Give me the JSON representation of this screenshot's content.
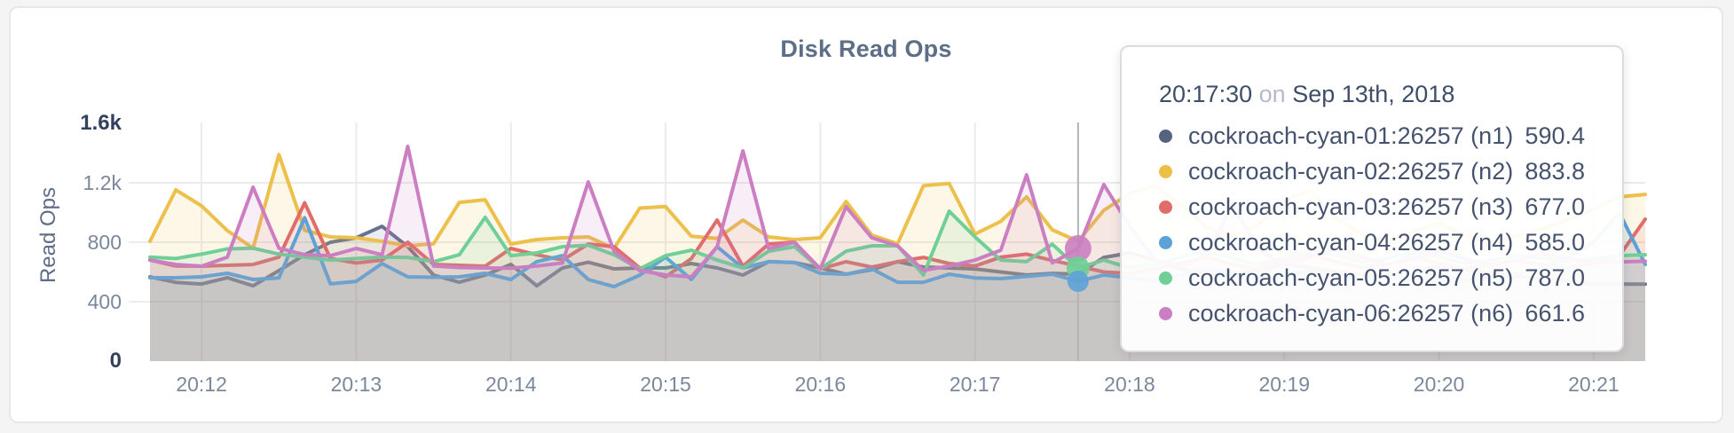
{
  "panel": {
    "title": "Disk Read Ops",
    "background": "#f4f4f4",
    "card_background": "#ffffff",
    "card_border": "#e7e7e7"
  },
  "chart_data": {
    "type": "area",
    "title": "Disk Read Ops",
    "ylabel": "Read Ops",
    "xlabel": "",
    "ylim": [
      0,
      1600
    ],
    "grid": true,
    "legend_position": "tooltip",
    "x_start_time": "20:11:40",
    "x_end_time": "20:21:20",
    "point_interval_seconds": 10,
    "first_tick_offset_seconds": 20,
    "tick_interval_seconds": 60,
    "x_ticks": [
      "20:12",
      "20:13",
      "20:14",
      "20:15",
      "20:16",
      "20:17",
      "20:18",
      "20:19",
      "20:20",
      "20:21"
    ],
    "y_ticks": [
      {
        "label": "0",
        "value": 0,
        "emphasis": true,
        "gridline": false
      },
      {
        "label": "400",
        "value": 400,
        "emphasis": false,
        "gridline": true
      },
      {
        "label": "800",
        "value": 800,
        "emphasis": false,
        "gridline": true
      },
      {
        "label": "1.2k",
        "value": 1200,
        "emphasis": false,
        "gridline": true
      },
      {
        "label": "1.6k",
        "value": 1600,
        "emphasis": true,
        "gridline": false
      }
    ],
    "series": [
      {
        "name": "cockroach-cyan-01:26257 (n1)",
        "color": "#66738f",
        "values": [
          567,
          530,
          519,
          561,
          507,
          609,
          716,
          800,
          830,
          907,
          770,
          579,
          531,
          579,
          651,
          507,
          627,
          665,
          621,
          627,
          627,
          657,
          627,
          579,
          669,
          663,
          627,
          585,
          615,
          669,
          633,
          627,
          620,
          600,
          580,
          590.4,
          585,
          698,
          728,
          680,
          620,
          590,
          570,
          610,
          650,
          630,
          600,
          580,
          560,
          600,
          640,
          620,
          590,
          570,
          555,
          540,
          520,
          519,
          518
        ]
      },
      {
        "name": "cockroach-cyan-02:26257 (n2)",
        "color": "#edbf4b",
        "values": [
          806,
          1152,
          1045,
          878,
          760,
          1390,
          880,
          836,
          830,
          806,
          776,
          790,
          1068,
          1086,
          788,
          818,
          830,
          836,
          758,
          1030,
          1040,
          840,
          825,
          949,
          836,
          818,
          830,
          1074,
          848,
          790,
          1180,
          1195,
          855,
          940,
          1105,
          883.8,
          806,
          1015,
          1128,
          1180,
          1050,
          900,
          840,
          920,
          1080,
          1150,
          960,
          850,
          810,
          870,
          930,
          850,
          800,
          840,
          890,
          950,
          1020,
          1105,
          1122
        ]
      },
      {
        "name": "cockroach-cyan-03:26257 (n3)",
        "color": "#e06d6a",
        "values": [
          680,
          640,
          639,
          645,
          650,
          700,
          1065,
          690,
          660,
          680,
          800,
          651,
          645,
          639,
          758,
          716,
          680,
          788,
          770,
          627,
          567,
          690,
          949,
          639,
          788,
          800,
          621,
          669,
          633,
          669,
          698,
          657,
          640,
          700,
          720,
          677,
          640,
          600,
          590,
          620,
          660,
          700,
          650,
          620,
          680,
          720,
          670,
          630,
          650,
          700,
          660,
          620,
          640,
          680,
          650,
          630,
          660,
          710,
          955
        ]
      },
      {
        "name": "cockroach-cyan-04:26257 (n4)",
        "color": "#5da2d7",
        "values": [
          561,
          561,
          567,
          591,
          549,
          560,
          965,
          520,
          537,
          657,
          567,
          564,
          567,
          591,
          549,
          669,
          710,
          549,
          501,
          579,
          700,
          549,
          770,
          627,
          669,
          663,
          591,
          585,
          621,
          531,
          531,
          585,
          560,
          555,
          570,
          585,
          537,
          580,
          560,
          540,
          580,
          620,
          590,
          550,
          570,
          610,
          580,
          550,
          570,
          600,
          570,
          540,
          560,
          590,
          620,
          700,
          800,
          997,
          651
        ]
      },
      {
        "name": "cockroach-cyan-05:26257 (n5)",
        "color": "#6fcf97",
        "values": [
          700,
          690,
          720,
          755,
          760,
          720,
          700,
          680,
          690,
          700,
          698,
          669,
          716,
          967,
          710,
          728,
          770,
          780,
          716,
          621,
          710,
          746,
          680,
          627,
          740,
          770,
          621,
          740,
          776,
          776,
          580,
          1009,
          836,
          680,
          669,
          787,
          627,
          680,
          627,
          650,
          700,
          740,
          690,
          650,
          700,
          750,
          710,
          670,
          690,
          730,
          700,
          660,
          680,
          710,
          690,
          670,
          690,
          710,
          716
        ]
      },
      {
        "name": "cockroach-cyan-06:26257 (n6)",
        "color": "#cb7ec1",
        "values": [
          680,
          650,
          639,
          700,
          1170,
          760,
          716,
          710,
          758,
          716,
          1445,
          640,
          630,
          627,
          625,
          640,
          660,
          1206,
          740,
          609,
          580,
          567,
          770,
          1415,
          758,
          800,
          621,
          1039,
          830,
          776,
          610,
          640,
          680,
          746,
          1253,
          661.6,
          758,
          1188,
          907,
          680,
          640,
          720,
          1050,
          750,
          650,
          700,
          760,
          700,
          650,
          690,
          740,
          690,
          650,
          680,
          720,
          690,
          660,
          668,
          672
        ]
      }
    ],
    "style": {
      "line_width": 4,
      "fill_opacity": 0.13,
      "grid_color": "#ebebeb"
    }
  },
  "hover": {
    "point_index": 36,
    "guideline_color": "#b3b3b3",
    "dots": [
      {
        "series": "cockroach-cyan-06:26257 (n6)",
        "color": "#cb7ec1",
        "value": 758,
        "radius": 15
      },
      {
        "series": "cockroach-cyan-05:26257 (n5)",
        "color": "#6fcf97",
        "value": 627,
        "radius": 13
      },
      {
        "series": "cockroach-cyan-04:26257 (n4)",
        "color": "#5da2d7",
        "value": 537,
        "radius": 12
      }
    ]
  },
  "tooltip": {
    "time": "20:17:30",
    "separator": "on",
    "date": "Sep 13th, 2018",
    "rows": [
      {
        "name": "cockroach-cyan-01:26257 (n1)",
        "value": "590.4",
        "color": "#566380"
      },
      {
        "name": "cockroach-cyan-02:26257 (n2)",
        "value": "883.8",
        "color": "#ecbf46"
      },
      {
        "name": "cockroach-cyan-03:26257 (n3)",
        "value": "677.0",
        "color": "#e06d6a"
      },
      {
        "name": "cockroach-cyan-04:26257 (n4)",
        "value": "585.0",
        "color": "#5da2d7"
      },
      {
        "name": "cockroach-cyan-05:26257 (n5)",
        "value": "787.0",
        "color": "#6fcf97"
      },
      {
        "name": "cockroach-cyan-06:26257 (n6)",
        "value": "661.6",
        "color": "#cb7ec1"
      }
    ]
  }
}
